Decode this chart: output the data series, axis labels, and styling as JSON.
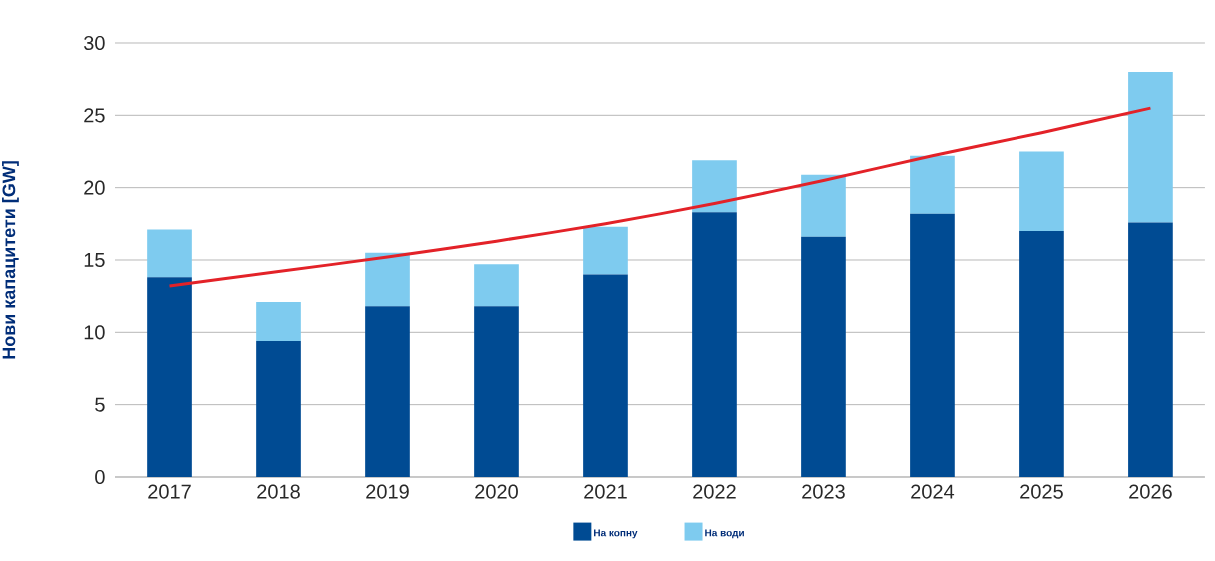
{
  "chart_data": {
    "type": "bar",
    "stacked": true,
    "ylabel": "Нови капацитети [GW]",
    "categories": [
      "2017",
      "2018",
      "2019",
      "2020",
      "2021",
      "2022",
      "2023",
      "2024",
      "2025",
      "2026"
    ],
    "series": [
      {
        "name": "На копну",
        "color": "#004b93",
        "values": [
          13.8,
          9.4,
          11.8,
          11.8,
          14.0,
          18.3,
          16.6,
          18.2,
          17.0,
          17.6
        ]
      },
      {
        "name": "На води",
        "color": "#7ecbef",
        "values": [
          3.3,
          2.7,
          3.7,
          2.9,
          3.3,
          3.6,
          4.3,
          4.0,
          5.5,
          10.4
        ]
      },
      {
        "type": "line",
        "color": "#e32228",
        "values": [
          13.2,
          14.2,
          15.2,
          16.3,
          17.5,
          18.9,
          20.5,
          22.2,
          23.8,
          25.5
        ]
      }
    ],
    "ylim": [
      0,
      30
    ],
    "yticks": [
      0,
      5,
      10,
      15,
      20,
      25,
      30
    ],
    "grid": "y",
    "legend": "bottom"
  }
}
